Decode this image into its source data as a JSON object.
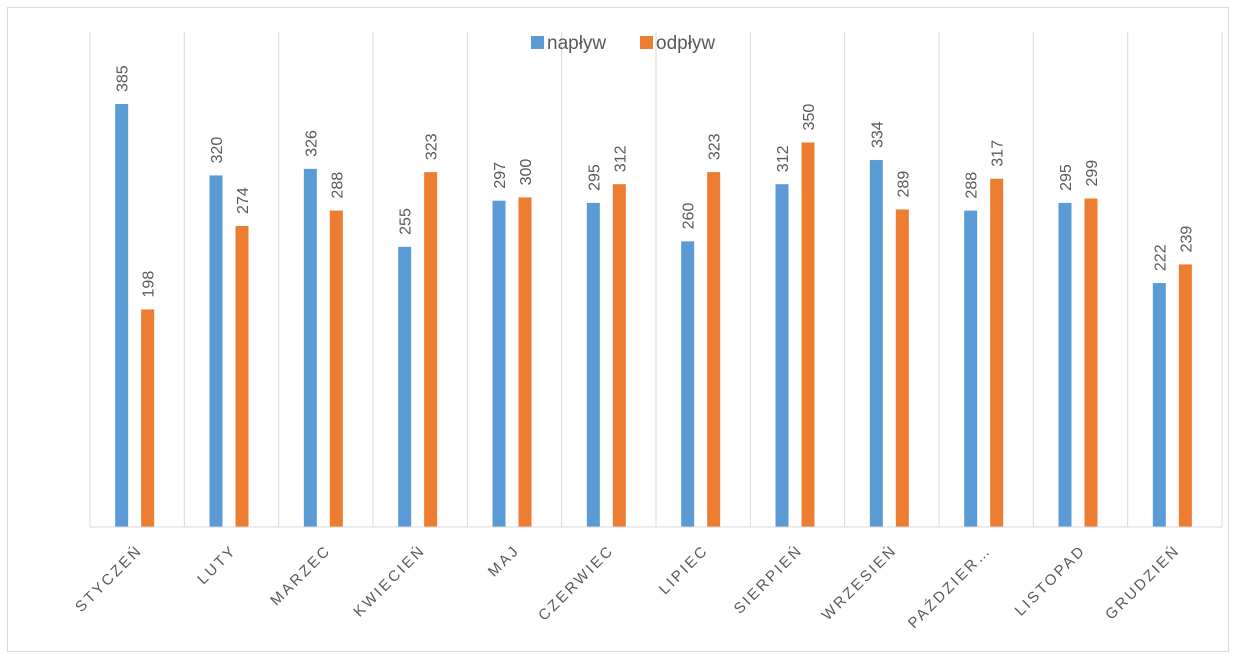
{
  "chart_data": {
    "type": "bar",
    "categories": [
      "STYCZEŃ",
      "LUTY",
      "MARZEC",
      "KWIECIEŃ",
      "MAJ",
      "CZERWIEC",
      "LIPIEC",
      "SIERPIEŃ",
      "WRZESIEŃ",
      "PAŹDZIER…",
      "LISTOPAD",
      "GRUDZIEŃ"
    ],
    "series": [
      {
        "name": "napływ",
        "color": "#5b9bd5",
        "values": [
          385,
          320,
          326,
          255,
          297,
          295,
          260,
          312,
          334,
          288,
          295,
          222
        ]
      },
      {
        "name": "odpływ",
        "color": "#ed7d31",
        "values": [
          198,
          274,
          288,
          323,
          300,
          312,
          323,
          350,
          289,
          317,
          299,
          239
        ]
      }
    ],
    "title": "",
    "xlabel": "",
    "ylabel": "",
    "ylim": [
      0,
      400
    ],
    "grid": "vertical category separators",
    "legend": "top-center",
    "data_labels": true
  }
}
